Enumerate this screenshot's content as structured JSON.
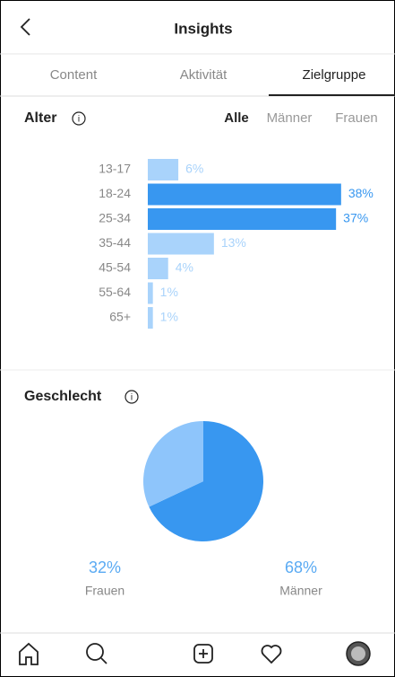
{
  "header": {
    "title": "Insights"
  },
  "tabs": [
    "Content",
    "Aktivität",
    "Zielgruppe"
  ],
  "age": {
    "title": "Alter",
    "filters": [
      "Alle",
      "Männer",
      "Frauen"
    ],
    "chart_data": {
      "type": "bar",
      "categories": [
        "13-17",
        "18-24",
        "25-34",
        "35-44",
        "45-54",
        "55-64",
        "65+"
      ],
      "values": [
        6,
        38,
        37,
        13,
        4,
        1,
        1
      ],
      "value_labels": [
        "6%",
        "38%",
        "37%",
        "13%",
        "4%",
        "1%",
        "1%"
      ],
      "colors": [
        "#a9d3fb",
        "#3897f0",
        "#3897f0",
        "#a9d3fb",
        "#a9d3fb",
        "#a9d3fb",
        "#a9d3fb"
      ]
    }
  },
  "gender": {
    "title": "Geschlecht",
    "chart_data": {
      "type": "pie",
      "categories": [
        "Frauen",
        "Männer"
      ],
      "values": [
        32,
        68
      ],
      "value_labels": [
        "32%",
        "68%"
      ],
      "colors": [
        "#8ec5fb",
        "#3897f0"
      ]
    }
  }
}
